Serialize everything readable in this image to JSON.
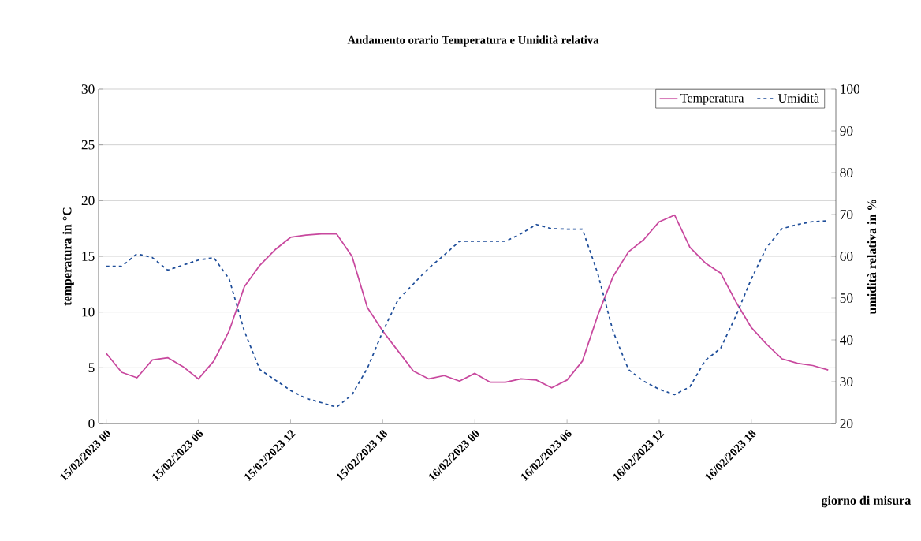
{
  "chart_data": {
    "type": "line",
    "title": "Andamento orario Temperatura e Umidità relativa",
    "xlabel": "giorno di misura",
    "ylabel": "temperatura in °C",
    "y2label": "umidità relativa in %",
    "categories": [
      "15/02/2023 00",
      null,
      null,
      null,
      null,
      null,
      "15/02/2023 06",
      null,
      null,
      null,
      null,
      null,
      "15/02/2023 12",
      null,
      null,
      null,
      null,
      null,
      "15/02/2023 18",
      null,
      null,
      null,
      null,
      null,
      "16/02/2023 00",
      null,
      null,
      null,
      null,
      null,
      "16/02/2023 06",
      null,
      null,
      null,
      null,
      null,
      "16/02/2023 12",
      null,
      null,
      null,
      null,
      null,
      "16/02/2023 18",
      null,
      null,
      null,
      null,
      null
    ],
    "series": [
      {
        "name": "Temperatura",
        "color": "#c8489e",
        "line_style": "solid",
        "values": [
          6.3,
          4.6,
          4.1,
          5.7,
          5.9,
          5.1,
          4.0,
          5.6,
          8.3,
          12.3,
          14.2,
          15.6,
          16.7,
          16.9,
          17.0,
          17.0,
          15.0,
          10.4,
          8.3,
          6.5,
          4.7,
          4.0,
          4.3,
          3.8,
          4.5,
          3.7,
          3.7,
          4.0,
          3.9,
          3.2,
          3.9,
          5.6,
          9.7,
          13.2,
          15.4,
          16.5,
          18.1,
          18.7,
          15.8,
          14.4,
          13.5,
          10.9,
          8.6,
          7.1,
          5.8,
          5.4,
          5.2,
          4.8
        ]
      },
      {
        "name": "Umidità",
        "color": "#1f4e9a",
        "line_style": "dashed",
        "axis": "y2",
        "values": [
          57.6,
          57.6,
          60.6,
          59.7,
          56.7,
          57.9,
          59.1,
          59.7,
          54.6,
          42.0,
          32.9,
          30.4,
          27.9,
          26.0,
          25.0,
          23.9,
          26.9,
          33.2,
          42.0,
          49.6,
          53.4,
          57.2,
          60.3,
          63.6,
          63.6,
          63.6,
          63.6,
          65.4,
          67.6,
          66.6,
          66.5,
          66.5,
          55.9,
          42.0,
          32.9,
          30.1,
          28.2,
          26.9,
          28.8,
          35.1,
          38.0,
          45.8,
          54.6,
          62.2,
          66.6,
          67.6,
          68.3,
          68.5
        ]
      }
    ],
    "ylim": [
      0,
      30
    ],
    "yticks": [
      0,
      5,
      10,
      15,
      20,
      25,
      30
    ],
    "y2lim": [
      20,
      100
    ],
    "y2ticks": [
      20,
      30,
      40,
      50,
      60,
      70,
      80,
      90,
      100
    ],
    "grid": "y",
    "legend": "top right",
    "marker": "none"
  }
}
